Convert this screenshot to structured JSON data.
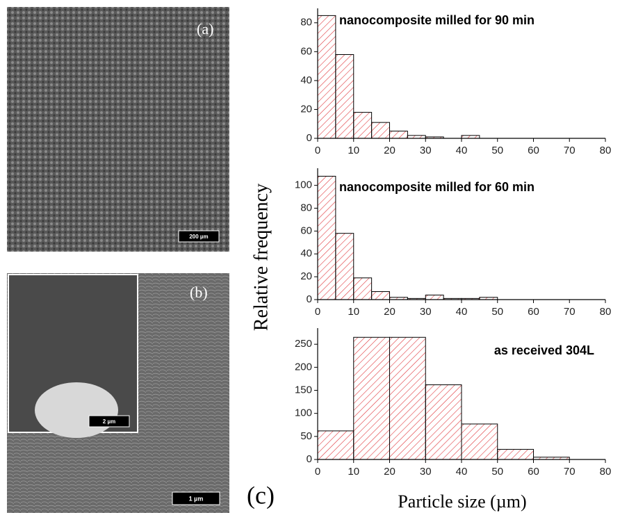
{
  "figure": {
    "panels": [
      "(a)",
      "(b)",
      "(c)"
    ],
    "scale_bars": [
      "200 µm",
      "2 µm",
      "1 µm"
    ],
    "ylabel": "Relative frequency",
    "xlabel": "Particle size (µm)"
  },
  "chart_data": [
    {
      "type": "histogram",
      "title": "nanocomposite milled for 90 min",
      "bins": [
        0,
        5,
        10,
        15,
        20,
        25,
        30,
        35,
        40,
        45
      ],
      "values": [
        85,
        58,
        18,
        11,
        5,
        2,
        1,
        0,
        2
      ],
      "color": "#e0393e",
      "xlim": [
        0,
        80
      ],
      "xticks": [
        0,
        10,
        20,
        30,
        40,
        50,
        60,
        70,
        80
      ],
      "ylim": [
        0,
        90
      ],
      "yticks": [
        0,
        20,
        40,
        60,
        80
      ]
    },
    {
      "type": "histogram",
      "title": "nanocomposite milled for 60 min",
      "bins": [
        0,
        5,
        10,
        15,
        20,
        25,
        30,
        35,
        40,
        45,
        50
      ],
      "values": [
        108,
        58,
        19,
        7,
        2,
        1,
        4,
        1,
        1,
        2
      ],
      "color": "#e0393e",
      "xlim": [
        0,
        80
      ],
      "xticks": [
        0,
        10,
        20,
        30,
        40,
        50,
        60,
        70,
        80
      ],
      "ylim": [
        0,
        115
      ],
      "yticks": [
        0,
        20,
        40,
        60,
        80,
        100
      ]
    },
    {
      "type": "histogram",
      "title": "as received 304L",
      "bins": [
        0,
        10,
        20,
        30,
        40,
        50,
        60,
        70
      ],
      "values": [
        62,
        265,
        265,
        162,
        77,
        22,
        5
      ],
      "color": "#e0393e",
      "xlim": [
        0,
        80
      ],
      "xticks": [
        0,
        10,
        20,
        30,
        40,
        50,
        60,
        70,
        80
      ],
      "ylim": [
        0,
        285
      ],
      "yticks": [
        0,
        50,
        100,
        150,
        200,
        250
      ]
    }
  ]
}
